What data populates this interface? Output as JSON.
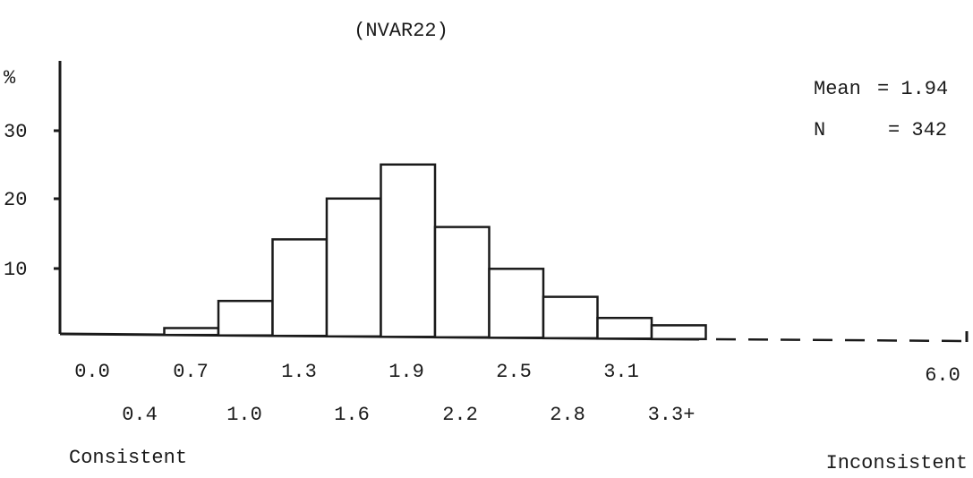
{
  "chart_data": {
    "type": "bar",
    "title": "(NVAR22)",
    "ylabel": "%",
    "yticks": [
      "30",
      "20",
      "10"
    ],
    "ylim": [
      0,
      40
    ],
    "x_tick_labels_row1": [
      "0.0",
      "0.7",
      "1.3",
      "1.9",
      "2.5",
      "3.1",
      "6.0"
    ],
    "x_tick_labels_row2": [
      "0.4",
      "1.0",
      "1.6",
      "2.2",
      "2.8",
      "3.3+"
    ],
    "x_end_labels": {
      "left": "Consistent",
      "right": "Inconsistent"
    },
    "categories": [
      "0.4",
      "0.7",
      "1.0",
      "1.3",
      "1.6",
      "1.9",
      "2.2",
      "2.5",
      "2.8",
      "3.1",
      "3.3+"
    ],
    "values": [
      0,
      1,
      5,
      14,
      20,
      25,
      16,
      10,
      6,
      3,
      2
    ],
    "stats": {
      "mean_label": "Mean",
      "mean_value": "= 1.94",
      "n_label": "N",
      "n_value": "= 342"
    },
    "grid": false
  }
}
